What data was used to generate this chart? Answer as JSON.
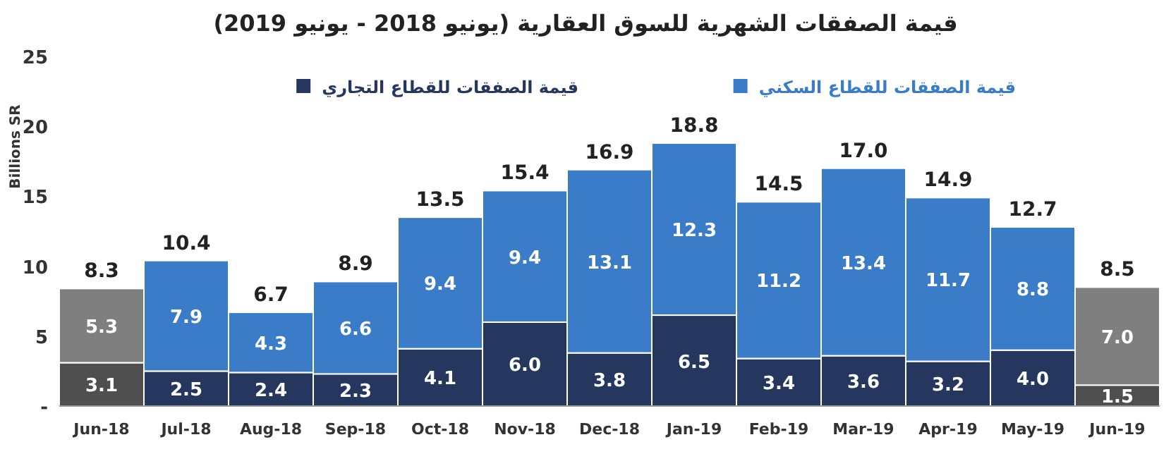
{
  "chart_data": {
    "type": "bar",
    "title": "قيمة الصفقات الشهرية للسوق العقارية (يونيو 2018 - يونيو 2019)",
    "ylabel": "Billions SR",
    "categories": [
      "Jun-18",
      "Jul-18",
      "Aug-18",
      "Sep-18",
      "Oct-18",
      "Nov-18",
      "Dec-18",
      "Jan-19",
      "Feb-19",
      "Mar-19",
      "Apr-19",
      "May-19",
      "Jun-19"
    ],
    "stacked": true,
    "legend": "top",
    "ylim": [
      0,
      25
    ],
    "yticks": [
      {
        "value": 0,
        "label": "-"
      },
      5,
      10,
      15,
      20,
      25
    ],
    "series": [
      {
        "name": "قيمة الصفقات للقطاع التجاري",
        "color": "#26375f",
        "colors": [
          "#4f4f4f",
          "#26375f",
          "#26375f",
          "#26375f",
          "#26375f",
          "#26375f",
          "#26375f",
          "#26375f",
          "#26375f",
          "#26375f",
          "#26375f",
          "#26375f",
          "#4f4f4f"
        ],
        "values": [
          3.1,
          2.5,
          2.4,
          2.3,
          4.1,
          6.0,
          3.8,
          6.5,
          3.4,
          3.6,
          3.2,
          4.0,
          1.5
        ],
        "value_labels": [
          "3.1",
          "2.5",
          "2.4",
          "2.3",
          "4.1",
          "6.0",
          "3.8",
          "6.5",
          "3.4",
          "3.6",
          "3.2",
          "4.0",
          "1.5"
        ]
      },
      {
        "name": "قيمة الصفقات للقطاع السكني",
        "color": "#3a7cc7",
        "colors": [
          "#7f7f7f",
          "#3a7cc7",
          "#3a7cc7",
          "#3a7cc7",
          "#3a7cc7",
          "#3a7cc7",
          "#3a7cc7",
          "#3a7cc7",
          "#3a7cc7",
          "#3a7cc7",
          "#3a7cc7",
          "#3a7cc7",
          "#7f7f7f"
        ],
        "values": [
          5.3,
          7.9,
          4.3,
          6.6,
          9.4,
          9.4,
          13.1,
          12.3,
          11.2,
          13.4,
          11.7,
          8.8,
          7.0
        ],
        "value_labels": [
          "5.3",
          "7.9",
          "4.3",
          "6.6",
          "9.4",
          "9.4",
          "13.1",
          "12.3",
          "11.2",
          "13.4",
          "11.7",
          "8.8",
          "7.0"
        ]
      }
    ],
    "totals": [
      "8.3",
      "10.4",
      "6.7",
      "8.9",
      "13.5",
      "15.4",
      "16.9",
      "18.8",
      "14.5",
      "17.0",
      "14.9",
      "12.7",
      "8.5"
    ]
  }
}
